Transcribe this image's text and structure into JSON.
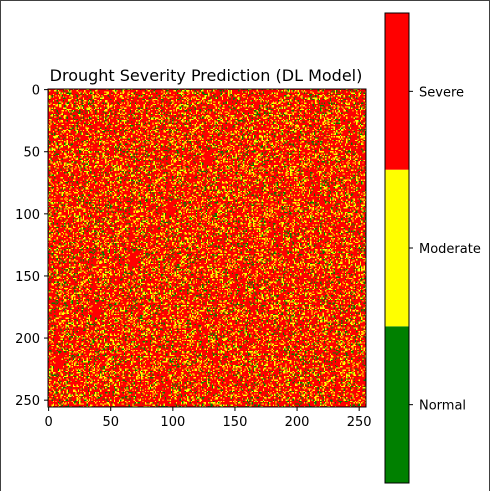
{
  "chart_data": {
    "type": "heatmap",
    "title": "Drought Severity Prediction (DL Model)",
    "xlabel": "",
    "ylabel": "",
    "grid_size": [
      256,
      256
    ],
    "xlim": [
      0,
      256
    ],
    "ylim": [
      256,
      0
    ],
    "x_ticks": [
      "0",
      "50",
      "100",
      "150",
      "200",
      "250"
    ],
    "y_ticks": [
      "0",
      "50",
      "100",
      "150",
      "200",
      "250"
    ],
    "classes": [
      {
        "name": "Normal",
        "value": 0,
        "color": "#008000"
      },
      {
        "name": "Moderate",
        "value": 1,
        "color": "#ffff00"
      },
      {
        "name": "Severe",
        "value": 2,
        "color": "#ff0000"
      }
    ],
    "approx_class_fractions": [
      0.1,
      0.2,
      0.7
    ],
    "colorbar": {
      "placement": "right",
      "tick_labels": [
        "Normal",
        "Moderate",
        "Severe"
      ]
    }
  }
}
